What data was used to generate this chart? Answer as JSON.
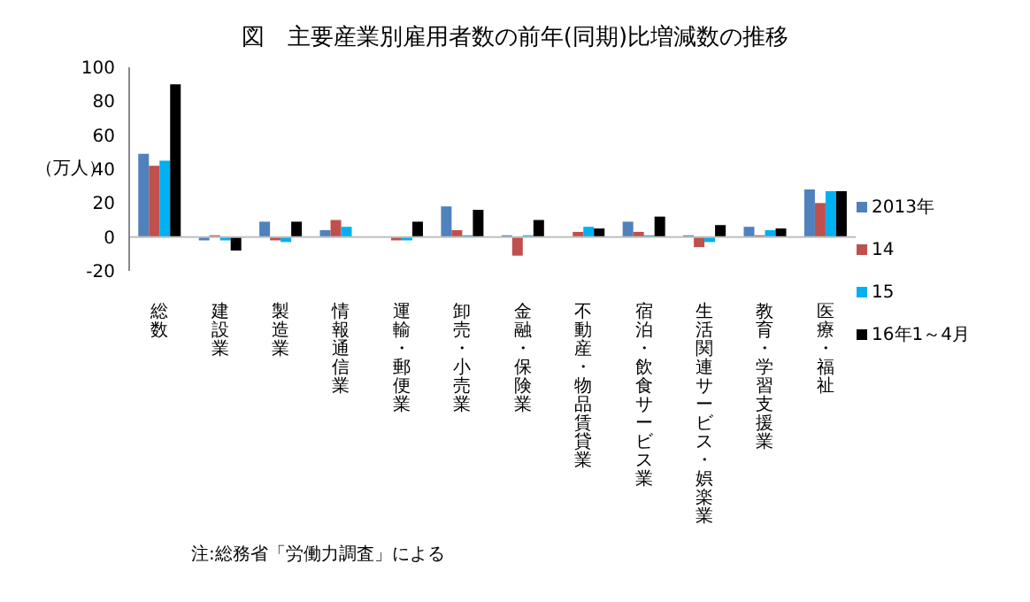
{
  "chart_data": {
    "type": "bar",
    "title": "図　主要産業別雇用者数の前年(同期)比増減数の推移",
    "ylabel": "（万人）",
    "categories": [
      "総数",
      "建設業",
      "製造業",
      "情報通信業",
      "運輸・郵便業",
      "卸売・小売業",
      "金融・保険業",
      "不動産・物品賃貸業",
      "宿泊・飲食サービス業",
      "生活関連サービス・娯楽業",
      "教育・学習支援業",
      "医療・福祉"
    ],
    "series": [
      {
        "name": "2013年",
        "color": "#4f81bd",
        "values": [
          49,
          -2,
          9,
          4,
          0,
          18,
          1,
          0,
          9,
          1,
          6,
          28
        ]
      },
      {
        "name": "14",
        "color": "#c0504d",
        "values": [
          42,
          1,
          -2,
          10,
          -2,
          4,
          -11,
          3,
          3,
          -6,
          1,
          20
        ]
      },
      {
        "name": "15",
        "color": "#00b0f0",
        "values": [
          45,
          -2,
          -3,
          6,
          -2,
          1,
          1,
          6,
          1,
          -3,
          4,
          27
        ]
      },
      {
        "name": "16年1～4月",
        "color": "#000000",
        "values": [
          90,
          -8,
          9,
          0,
          9,
          16,
          10,
          5,
          12,
          7,
          5,
          27
        ]
      }
    ],
    "ylim": [
      -20,
      100
    ],
    "yticks": [
      -20,
      0,
      20,
      40,
      60,
      80,
      100
    ],
    "grid": false,
    "legend": "right",
    "ref_lines": [
      {
        "axis": "y",
        "value": 0,
        "color": "#bfbfbf"
      }
    ],
    "annotations": [
      "注:総務省「労働力調査」による"
    ]
  }
}
